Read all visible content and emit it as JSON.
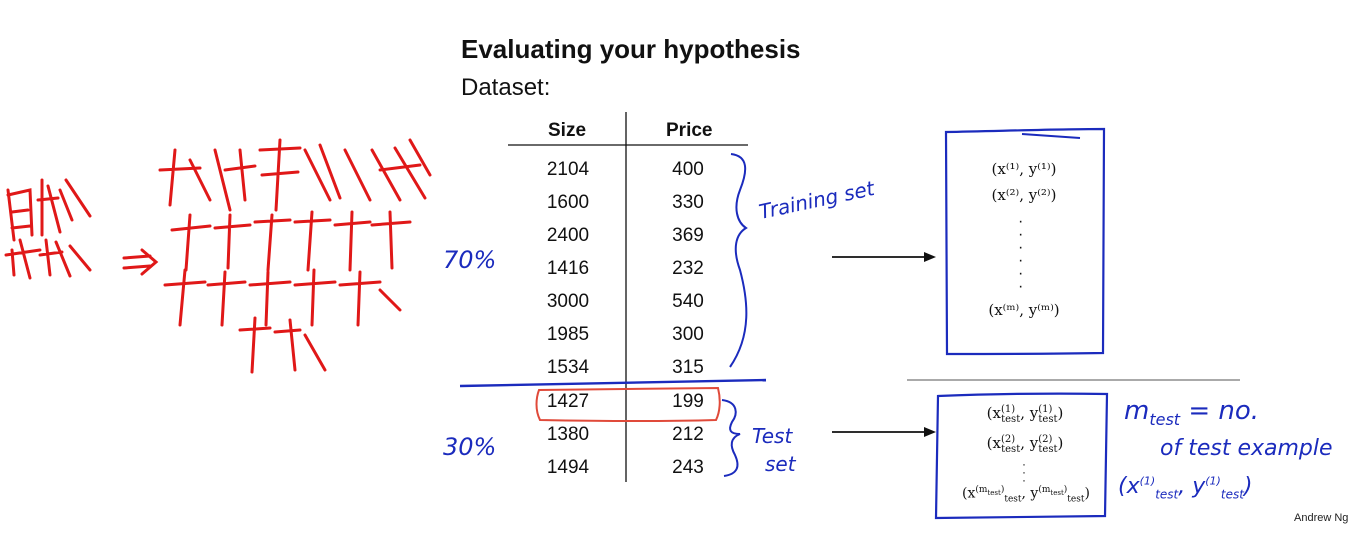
{
  "slide": {
    "title": "Evaluating your hypothesis",
    "subtitle": "Dataset:",
    "credit": "Andrew Ng"
  },
  "table": {
    "columns": [
      "Size",
      "Price"
    ],
    "rows": [
      [
        "2104",
        "400"
      ],
      [
        "1600",
        "330"
      ],
      [
        "2400",
        "369"
      ],
      [
        "1416",
        "232"
      ],
      [
        "3000",
        "540"
      ],
      [
        "1985",
        "300"
      ],
      [
        "1534",
        "315"
      ],
      [
        "1427",
        "199"
      ],
      [
        "1380",
        "212"
      ],
      [
        "1494",
        "243"
      ]
    ]
  },
  "annotations": {
    "training_label": "Training set",
    "test_label_1": "Test",
    "test_label_2": "set",
    "pct_train": "70%",
    "pct_test": "30%",
    "m_test_line1": "m",
    "m_test_sub": "test",
    "m_test_line1b": " = no.",
    "m_test_line2": "of test example",
    "m_test_line3": "(x",
    "m_test_line3b": "(1)",
    "m_test_line3c": "test",
    "m_test_line3d": ", y",
    "m_test_line3e": "(1)",
    "m_test_line3f": "test",
    "m_test_line3g": ")"
  },
  "train_box": {
    "row1": "(x⁽¹⁾, y⁽¹⁾)",
    "row2": "(x⁽²⁾, y⁽²⁾)",
    "row_last": "(x⁽ᵐ⁾, y⁽ᵐ⁾)"
  },
  "test_box": {
    "row1_a": "(x",
    "row1_sup": "(1)",
    "row1_sub": "test",
    "row1_b": ", y",
    "row1_c": ")",
    "row2_sup": "(2)",
    "row_last_sup": "(m",
    "row_last_supsub": "test",
    "row_last_sup_close": ")"
  },
  "chinese_note": {
    "line1": "如果数据集没有",
    "line2": "随机打乱",
    "line3": "最好随机选择",
    "line4": "打乱"
  },
  "colors": {
    "handwriting_blue": "#1b2bbd",
    "handwriting_red": "#e01818",
    "text": "#111111"
  }
}
